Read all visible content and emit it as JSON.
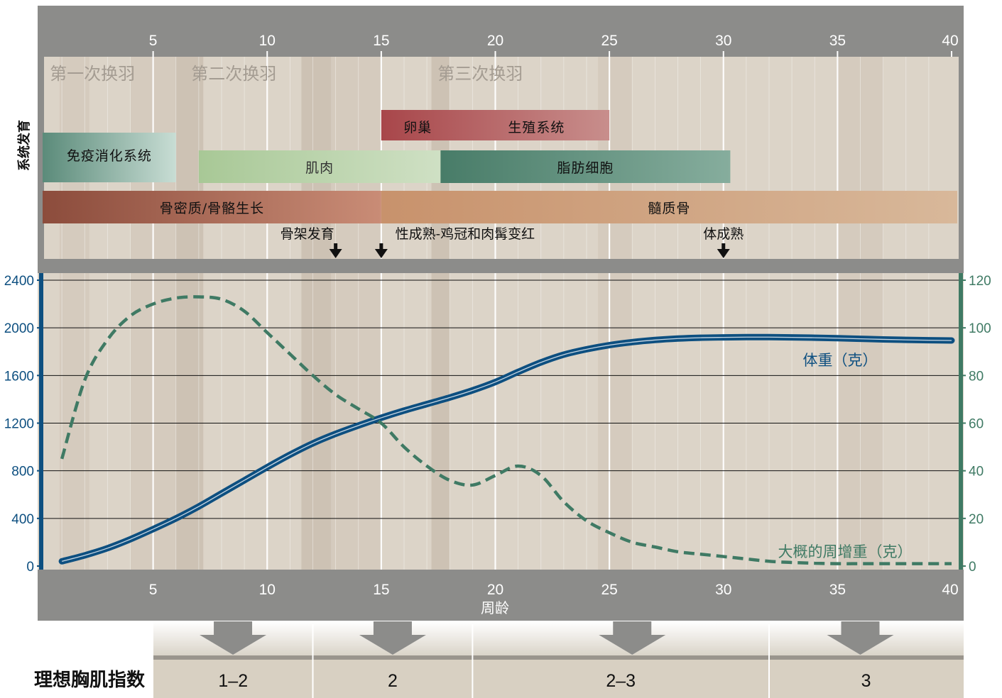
{
  "chart_data": {
    "type": "line",
    "xlabel": "周龄",
    "x_ticks": [
      5,
      10,
      15,
      20,
      25,
      30,
      35,
      40
    ],
    "xlim": [
      0,
      40
    ],
    "left_axis": {
      "ylim": [
        0,
        2400
      ],
      "ticks": [
        0,
        400,
        800,
        1200,
        1600,
        2000,
        2400
      ],
      "color": "#0d4f80"
    },
    "right_axis": {
      "ylim": [
        0,
        120
      ],
      "ticks": [
        0,
        20,
        40,
        60,
        80,
        100,
        120
      ],
      "color": "#3f7a64"
    },
    "grid": true,
    "series": [
      {
        "name": "体重（克）",
        "axis": "left",
        "style": "solid",
        "color": "#0d4f80",
        "points": [
          [
            1,
            40
          ],
          [
            2,
            90
          ],
          [
            3,
            150
          ],
          [
            4,
            225
          ],
          [
            5,
            310
          ],
          [
            6,
            400
          ],
          [
            7,
            500
          ],
          [
            8,
            610
          ],
          [
            9,
            720
          ],
          [
            10,
            830
          ],
          [
            11,
            935
          ],
          [
            12,
            1030
          ],
          [
            13,
            1110
          ],
          [
            14,
            1180
          ],
          [
            15,
            1245
          ],
          [
            16,
            1305
          ],
          [
            17,
            1360
          ],
          [
            18,
            1415
          ],
          [
            19,
            1475
          ],
          [
            20,
            1545
          ],
          [
            21,
            1630
          ],
          [
            22,
            1710
          ],
          [
            23,
            1775
          ],
          [
            24,
            1820
          ],
          [
            25,
            1855
          ],
          [
            26,
            1880
          ],
          [
            27,
            1898
          ],
          [
            28,
            1910
          ],
          [
            29,
            1917
          ],
          [
            30,
            1920
          ],
          [
            31,
            1922
          ],
          [
            32,
            1922
          ],
          [
            33,
            1920
          ],
          [
            34,
            1917
          ],
          [
            35,
            1913
          ],
          [
            36,
            1908
          ],
          [
            37,
            1903
          ],
          [
            38,
            1899
          ],
          [
            39,
            1896
          ],
          [
            40,
            1894
          ]
        ]
      },
      {
        "name": "大概的周增重（克）",
        "axis": "right",
        "style": "dashed",
        "color": "#3f7a64",
        "points": [
          [
            1,
            45
          ],
          [
            2,
            78
          ],
          [
            3,
            95
          ],
          [
            4,
            105
          ],
          [
            5,
            110
          ],
          [
            6,
            112.5
          ],
          [
            7,
            113
          ],
          [
            8,
            112
          ],
          [
            9,
            107
          ],
          [
            10,
            98
          ],
          [
            11,
            89
          ],
          [
            12,
            80
          ],
          [
            13,
            72
          ],
          [
            14,
            66
          ],
          [
            15,
            60
          ],
          [
            16,
            50
          ],
          [
            17,
            42
          ],
          [
            18,
            36
          ],
          [
            19,
            34
          ],
          [
            20,
            38
          ],
          [
            21,
            42
          ],
          [
            22,
            38
          ],
          [
            23,
            27
          ],
          [
            24,
            19
          ],
          [
            25,
            14
          ],
          [
            26,
            10
          ],
          [
            27,
            8
          ],
          [
            28,
            6
          ],
          [
            29,
            5
          ],
          [
            30,
            4
          ],
          [
            31,
            3
          ],
          [
            32,
            2
          ],
          [
            33,
            1.5
          ],
          [
            34,
            1.2
          ],
          [
            35,
            1
          ],
          [
            36,
            1
          ],
          [
            37,
            1
          ],
          [
            38,
            1
          ],
          [
            39,
            1
          ],
          [
            40,
            1
          ]
        ]
      }
    ],
    "molt_labels": [
      {
        "label": "第一次换羽",
        "x": 1
      },
      {
        "label": "第二次换羽",
        "x": 7.2
      },
      {
        "label": "第三次换羽",
        "x": 18
      }
    ],
    "systems_title": "系统发育",
    "system_bars": [
      {
        "label": "卵巢",
        "start": 15,
        "end": 25,
        "row": 0,
        "colors": [
          "#a8464a",
          "#c88e8c"
        ],
        "label_at": 16.6
      },
      {
        "label": "生殖系统",
        "start": 15,
        "end": 25,
        "row": 0,
        "colors": [
          "#a8464a",
          "#c88e8c"
        ],
        "label_at": 21.8,
        "no_fill": true
      },
      {
        "label": "免疫消化系统",
        "start": 0,
        "end": 6,
        "row": 1,
        "colors": [
          "#5b8b7a",
          "#c8ddd4"
        ]
      },
      {
        "label": "肌肉",
        "start": 7,
        "end": 17.6,
        "row": 2,
        "colors": [
          "#a8c896",
          "#cfe0c4"
        ]
      },
      {
        "label": "脂肪细胞",
        "start": 17.6,
        "end": 30.3,
        "row": 2,
        "colors": [
          "#487c68",
          "#86ad9d"
        ]
      },
      {
        "label": "骨密质/骨骼生长",
        "start": 0,
        "end": 15,
        "row": 3,
        "colors": [
          "#8c4c3c",
          "#c98c76"
        ]
      },
      {
        "label": "髓质骨",
        "start": 15,
        "end": 40,
        "row": 3,
        "colors": [
          "#c8926c",
          "#d8b89a"
        ]
      }
    ],
    "events": [
      {
        "label": "骨架发育",
        "x": 13
      },
      {
        "label": "性成熟-鸡冠和肉髯变红",
        "x": 15
      },
      {
        "label": "体成熟",
        "x": 30
      }
    ],
    "breast_index": {
      "title": "理想胸肌指数",
      "segments": [
        {
          "label": "1–2",
          "start": 0,
          "end": 12,
          "arrow_x": 8.5
        },
        {
          "label": "2",
          "start": 12,
          "end": 19,
          "arrow_x": 15.5
        },
        {
          "label": "2–3",
          "start": 19,
          "end": 32,
          "arrow_x": 26
        },
        {
          "label": "3",
          "start": 32,
          "end": 40.5,
          "arrow_x": 36
        }
      ]
    }
  }
}
